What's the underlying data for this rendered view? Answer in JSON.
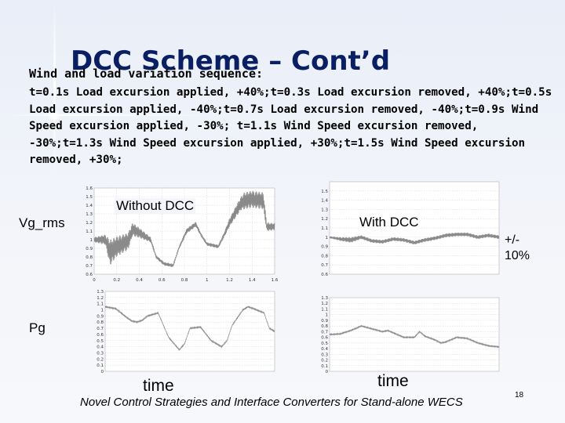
{
  "slide": {
    "title": "DCC Scheme – Cont’d",
    "subtitle": "Wind and load variation sequence:",
    "body": "t=0.1s Load excursion applied, +40%;t=0.3s Load excursion removed, +40%;t=0.5s Load excursion applied, -40%;t=0.7s Load excursion removed, -40%;t=0.9s Wind Speed excursion applied, -30%; t=1.1s Wind Speed excursion removed, -30%;t=1.3s Wind Speed excursion applied, +30%;t=1.5s Wind Speed excursion removed, +30%;",
    "label_vg": "Vg_rms",
    "label_pg": "Pg",
    "label_without": "Without DCC",
    "label_with": "With DCC",
    "label_band": "+/-\n10%",
    "label_time": "time",
    "footer": "Novel Control Strategies and Interface Converters for Stand-alone WECS",
    "page_number": "18"
  },
  "chart_data": [
    {
      "type": "line",
      "panel": "Vg_rms without DCC",
      "ylim": [
        0.6,
        1.6
      ],
      "yticks": [
        "1.6",
        "1.5",
        "1.4",
        "1.3",
        "1.2",
        "1.1",
        "1",
        "0.9",
        "0.8",
        "0.7",
        "0.6"
      ],
      "xlim": [
        0,
        1.6
      ],
      "xticks": [
        "0",
        "0.2",
        "0.4",
        "0.6",
        "0.8",
        "1",
        "1.2",
        "1.4",
        "1.6"
      ],
      "series": [
        {
          "x": [
            0,
            0.1,
            0.14,
            0.2,
            0.3,
            0.34,
            0.4,
            0.5,
            0.55,
            0.62,
            0.7,
            0.75,
            0.82,
            0.9,
            0.95,
            1.0,
            1.1,
            1.15,
            1.2,
            1.3,
            1.33,
            1.4,
            1.5,
            1.53,
            1.6
          ],
          "y": [
            1.0,
            1.0,
            0.85,
            0.92,
            0.98,
            1.12,
            1.08,
            1.0,
            0.8,
            0.72,
            0.7,
            0.9,
            1.1,
            1.18,
            1.05,
            0.95,
            0.92,
            1.05,
            1.2,
            1.42,
            1.45,
            1.47,
            1.45,
            1.15,
            1.15
          ],
          "ripple": [
            0.03,
            0.06,
            0.15,
            0.12,
            0.1,
            0.08,
            0.06,
            0.03,
            0.02,
            0.02,
            0.02,
            0.02,
            0.03,
            0.03,
            0.02,
            0.02,
            0.02,
            0.03,
            0.05,
            0.08,
            0.1,
            0.1,
            0.1,
            0.05,
            0.04
          ]
        }
      ]
    },
    {
      "type": "line",
      "panel": "Vg_rms with DCC",
      "ylim": [
        0.6,
        1.6
      ],
      "yticks": [
        "1.5",
        "1.4",
        "1.3",
        "1.2",
        "1.1",
        "1",
        "0.9",
        "0.8",
        "0.7",
        "0.6"
      ],
      "xlim": [
        0,
        1.6
      ],
      "xticks": [],
      "series": [
        {
          "x": [
            0,
            0.1,
            0.2,
            0.3,
            0.4,
            0.5,
            0.6,
            0.7,
            0.8,
            0.9,
            1.0,
            1.1,
            1.2,
            1.3,
            1.4,
            1.5,
            1.6
          ],
          "y": [
            1.0,
            0.98,
            0.97,
            1.0,
            0.96,
            0.95,
            0.98,
            0.97,
            0.94,
            0.97,
            0.99,
            1.02,
            1.03,
            1.03,
            1.0,
            1.02,
            1.0
          ],
          "ripple": [
            0.01,
            0.02,
            0.03,
            0.02,
            0.02,
            0.02,
            0.02,
            0.02,
            0.02,
            0.02,
            0.02,
            0.02,
            0.02,
            0.02,
            0.02,
            0.02,
            0.02
          ]
        }
      ]
    },
    {
      "type": "line",
      "panel": "Pg without DCC",
      "ylim": [
        0,
        1.3
      ],
      "yticks": [
        "1.3",
        "1.2",
        "1.1",
        "1",
        "0.9",
        "0.8",
        "0.7",
        "0.6",
        "0.5",
        "0.4",
        "0.3",
        "0.2",
        "0.1",
        "0"
      ],
      "xlim": [
        0,
        1.6
      ],
      "xticks": [],
      "series": [
        {
          "x": [
            0,
            0.1,
            0.15,
            0.2,
            0.25,
            0.3,
            0.35,
            0.4,
            0.5,
            0.55,
            0.6,
            0.7,
            0.75,
            0.8,
            0.9,
            1.0,
            1.1,
            1.15,
            1.2,
            1.3,
            1.35,
            1.4,
            1.5,
            1.55,
            1.6
          ],
          "y": [
            1.05,
            1.02,
            0.95,
            0.88,
            0.82,
            0.8,
            0.83,
            0.9,
            0.95,
            0.75,
            0.55,
            0.35,
            0.45,
            0.7,
            0.72,
            0.5,
            0.4,
            0.5,
            0.75,
            1.0,
            1.05,
            1.02,
            0.95,
            0.7,
            0.65
          ],
          "ripple": [
            0.01,
            0.01,
            0.01,
            0.01,
            0.01,
            0.01,
            0.01,
            0.01,
            0.01,
            0.01,
            0.01,
            0.01,
            0.01,
            0.01,
            0.01,
            0.01,
            0.01,
            0.01,
            0.01,
            0.01,
            0.01,
            0.01,
            0.01,
            0.01,
            0.01
          ]
        }
      ]
    },
    {
      "type": "line",
      "panel": "Pg with DCC",
      "ylim": [
        0,
        1.3
      ],
      "yticks": [
        "1.3",
        "1.2",
        "1.1",
        "1",
        "0.9",
        "0.8",
        "0.7",
        "0.6",
        "0.5",
        "0.4",
        "0.3",
        "0.2",
        "0.1",
        "0"
      ],
      "xlim": [
        0,
        1.6
      ],
      "xticks": [],
      "series": [
        {
          "x": [
            0,
            0.1,
            0.2,
            0.3,
            0.4,
            0.5,
            0.55,
            0.6,
            0.7,
            0.8,
            0.85,
            0.9,
            1.0,
            1.05,
            1.1,
            1.2,
            1.3,
            1.4,
            1.5,
            1.6
          ],
          "y": [
            0.65,
            0.66,
            0.72,
            0.8,
            0.75,
            0.7,
            0.72,
            0.68,
            0.6,
            0.6,
            0.7,
            0.62,
            0.55,
            0.5,
            0.52,
            0.6,
            0.58,
            0.5,
            0.45,
            0.43
          ],
          "ripple": [
            0.01,
            0.01,
            0.01,
            0.01,
            0.01,
            0.01,
            0.01,
            0.01,
            0.01,
            0.01,
            0.01,
            0.01,
            0.01,
            0.01,
            0.01,
            0.01,
            0.01,
            0.01,
            0.01,
            0.01
          ]
        }
      ]
    }
  ]
}
